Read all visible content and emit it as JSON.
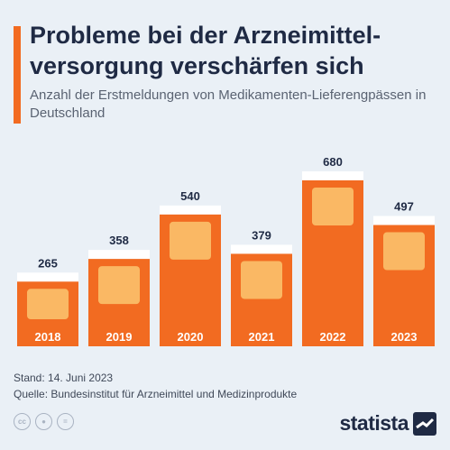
{
  "header": {
    "title": "Probleme bei der Arzneimittel-versorgung verschärfen sich",
    "subtitle": "Anzahl der Erstmeldungen von Medikamenten-Lieferengpässen in Deutschland"
  },
  "footer": {
    "stand": "Stand: 14. Juni 2023",
    "quelle": "Quelle: Bundesinstitut für Arzneimittel und Medizinprodukte"
  },
  "brand": {
    "name": "statista"
  },
  "license_icons": [
    "cc-icon",
    "person-icon",
    "equals-icon"
  ],
  "colors": {
    "accent": "#f26b21",
    "bar": "#f26b21",
    "bar_inner": "#fbc16b",
    "title": "#1f2a44",
    "background": "#eaf0f6"
  },
  "chart_data": {
    "type": "bar",
    "categories": [
      "2018",
      "2019",
      "2020",
      "2021",
      "2022",
      "2023"
    ],
    "values": [
      265,
      358,
      540,
      379,
      680,
      497
    ],
    "title": "Probleme bei der Arzneimittel-versorgung verschärfen sich",
    "xlabel": "",
    "ylabel": "",
    "ylim": [
      0,
      680
    ],
    "grid": false,
    "data_labels": true
  }
}
